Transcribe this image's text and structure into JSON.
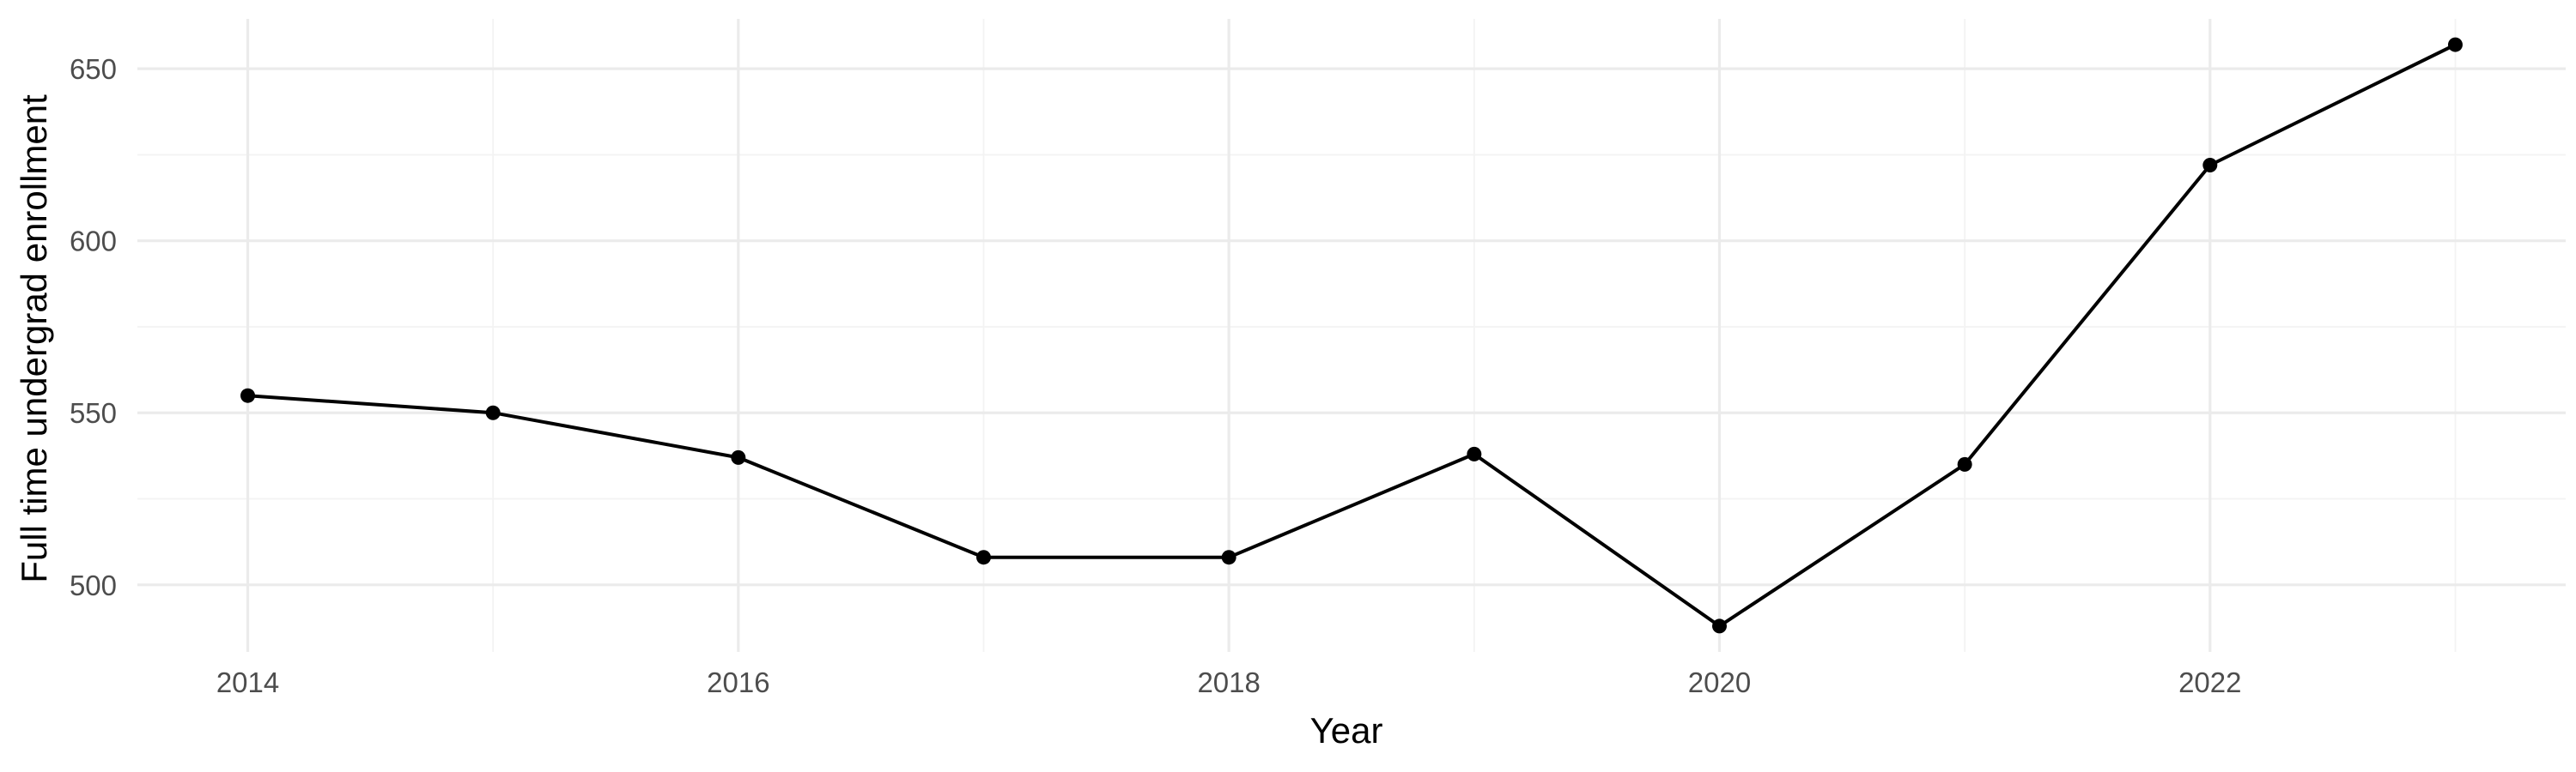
{
  "chart_data": {
    "type": "line",
    "title": "",
    "xlabel": "Year",
    "ylabel": "Full time undergrad enrollment",
    "x": [
      2014,
      2015,
      2016,
      2017,
      2018,
      2019,
      2020,
      2021,
      2022,
      2023
    ],
    "series": [
      {
        "values": [
          555,
          550,
          537,
          508,
          508,
          538,
          488,
          535,
          622,
          657
        ]
      }
    ],
    "xlim": [
      2013.55,
      2023.45
    ],
    "ylim": [
      480.5,
      664.5
    ],
    "x_ticks": [
      2014,
      2016,
      2018,
      2020,
      2022
    ],
    "x_minor_ticks": [
      2015,
      2017,
      2019,
      2021,
      2023
    ],
    "y_ticks": [
      500,
      550,
      600,
      650
    ],
    "y_minor_ticks": [
      525,
      575,
      625
    ],
    "grid": true,
    "legend": "none",
    "colors": {
      "line": "#000000",
      "point": "#000000",
      "grid": "#ebebeb",
      "tick_text": "#4d4d4d"
    }
  }
}
